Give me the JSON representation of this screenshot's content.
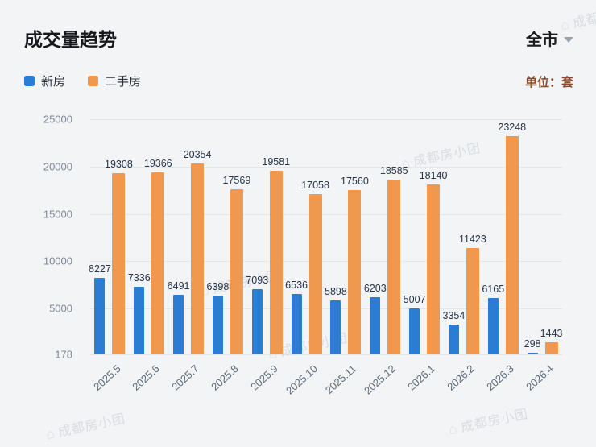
{
  "header": {
    "title": "成交量趋势",
    "region_selector": "全市",
    "unit_label": "单位：套"
  },
  "legend": [
    {
      "label": "新房",
      "color": "#2b7dd4"
    },
    {
      "label": "二手房",
      "color": "#f0984e"
    }
  ],
  "chart_data": {
    "type": "bar",
    "title": "成交量趋势",
    "categories": [
      "2025.5",
      "2025.6",
      "2025.7",
      "2025.8",
      "2025.9",
      "2025.10",
      "2025.11",
      "2025.12",
      "2026.1",
      "2026.2",
      "2026.3",
      "2026.4"
    ],
    "series": [
      {
        "name": "新房",
        "color": "#2b7dd4",
        "values": [
          8227,
          7336,
          6491,
          6398,
          7093,
          6536,
          5898,
          6203,
          5007,
          3354,
          6165,
          298
        ]
      },
      {
        "name": "二手房",
        "color": "#f0984e",
        "values": [
          19308,
          19366,
          20354,
          17569,
          19581,
          17058,
          17560,
          18585,
          18140,
          11423,
          23248,
          1443
        ]
      }
    ],
    "yticks": [
      178,
      5000,
      10000,
      15000,
      20000,
      25000
    ],
    "ylim": [
      178,
      25000
    ],
    "unit": "套",
    "grid": true,
    "legend_position": "top-left",
    "value_labels": true
  },
  "watermark": {
    "icon": "⌂",
    "text": "成都房小团"
  }
}
